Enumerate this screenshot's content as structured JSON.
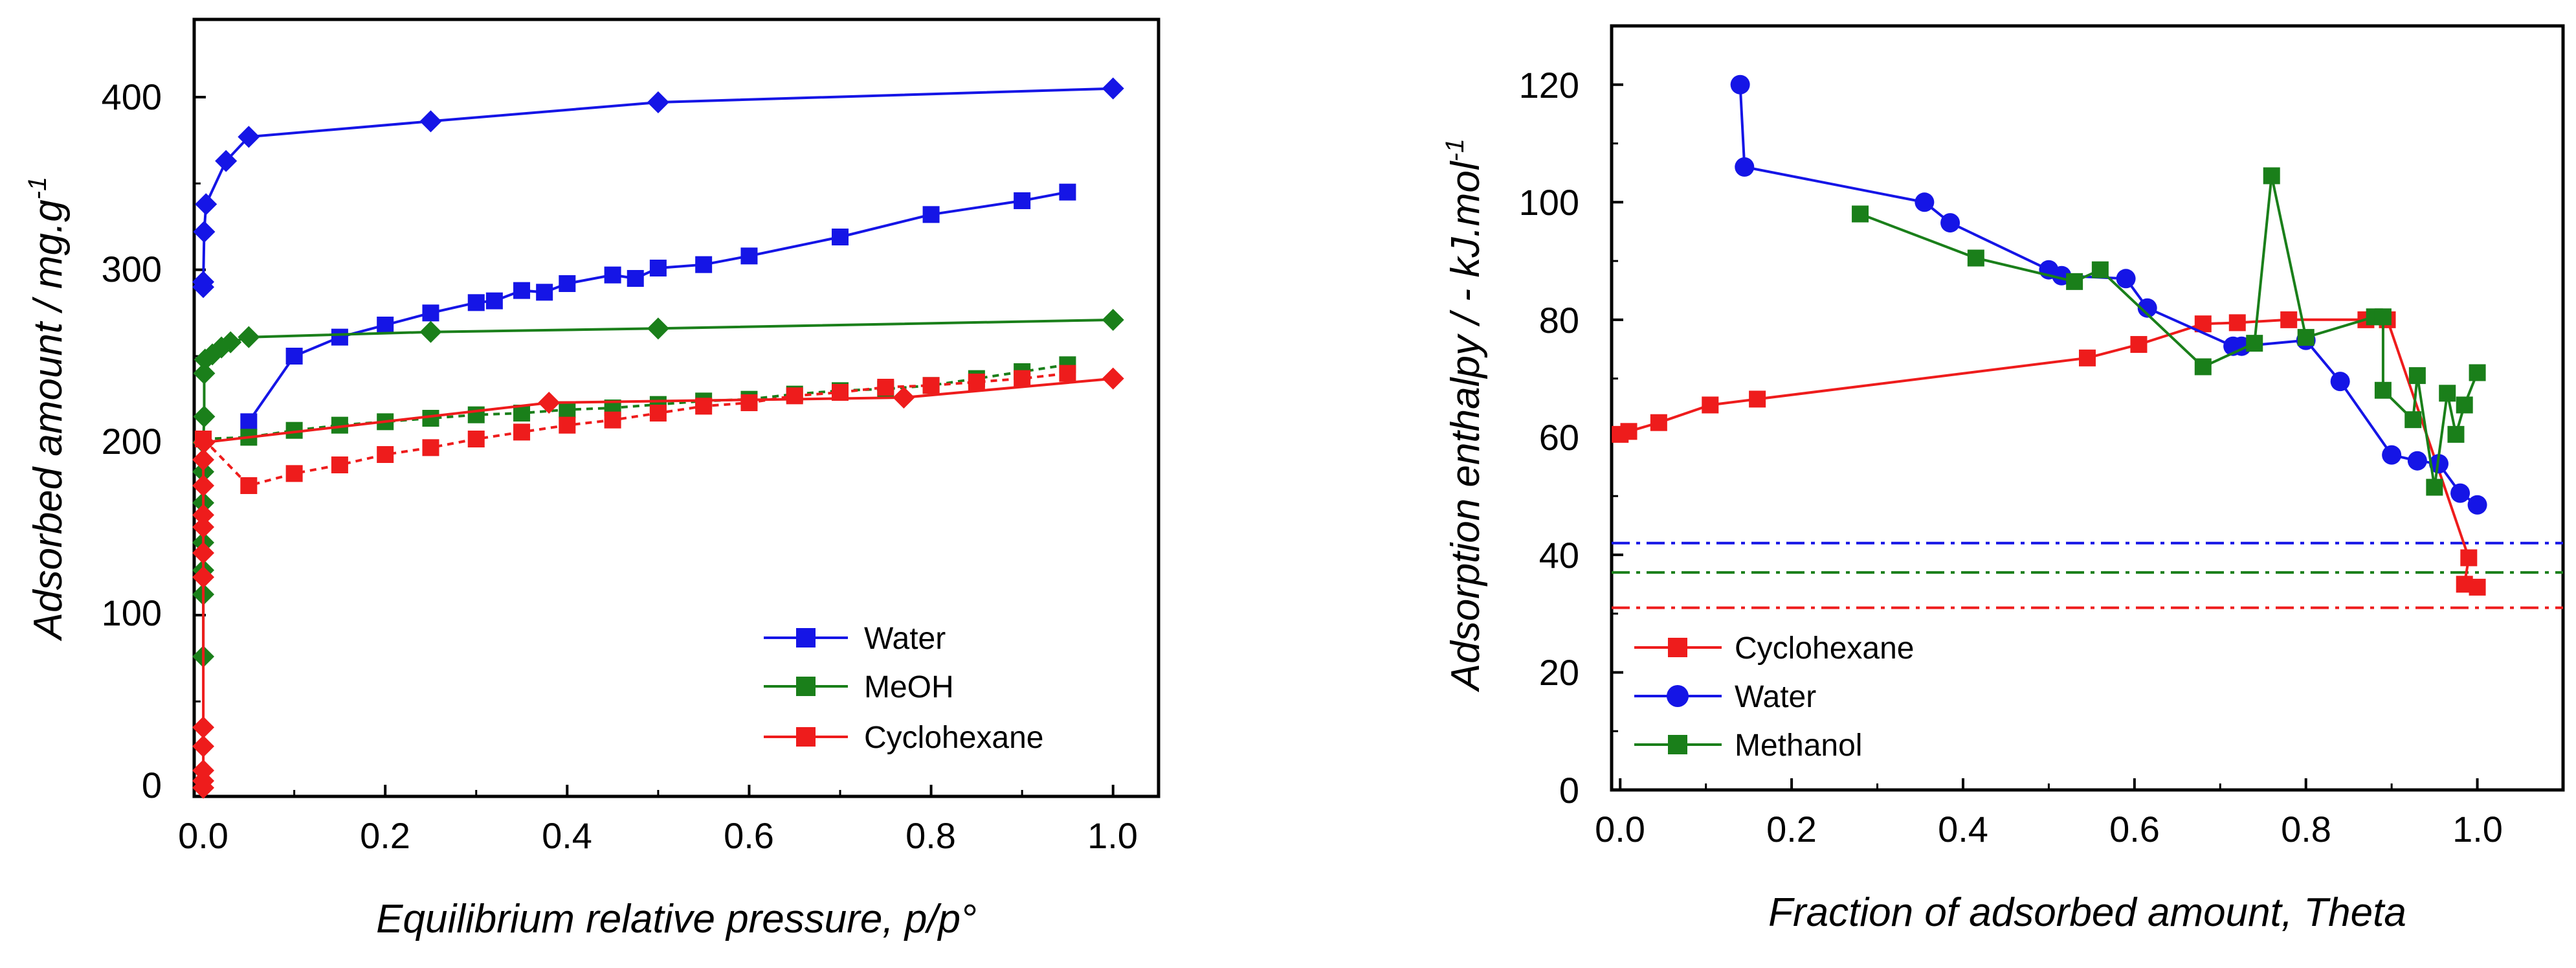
{
  "chart_data": [
    {
      "type": "scatter",
      "xlabel": "Equilibrium relative pressure, p/p°",
      "ylabel": "Adsorbed amount / mg.g",
      "ylabel_sup": "-1",
      "xlim": [
        -0.01,
        1.05
      ],
      "ylim": [
        -5,
        445
      ],
      "xticks": [
        0.0,
        0.2,
        0.4,
        0.6,
        0.8,
        1.0
      ],
      "xtick_labels": [
        "0.0",
        "0.2",
        "0.4",
        "0.6",
        "0.8",
        "1.0"
      ],
      "yticks": [
        0,
        100,
        200,
        300,
        400
      ],
      "ytick_labels": [
        "0",
        "100",
        "200",
        "300",
        "400"
      ],
      "legend_position": "bottom-right",
      "legend": [
        {
          "label": "Water",
          "color": "#1515e6",
          "marker": "square"
        },
        {
          "label": "MeOH",
          "color": "#1a7f1a",
          "marker": "square"
        },
        {
          "label": "Cyclohexane",
          "color": "#ee1c1c",
          "marker": "square"
        }
      ],
      "series": [
        {
          "name": "Water adsorption",
          "color": "#1515e6",
          "marker": "diamond",
          "dash": "",
          "points": [
            [
              0.0,
              290
            ],
            [
              0.0,
              293
            ],
            [
              0.001,
              322
            ],
            [
              0.003,
              338
            ],
            [
              0.025,
              363
            ],
            [
              0.05,
              377
            ],
            [
              0.25,
              386
            ],
            [
              0.5,
              397
            ],
            [
              1.0,
              405
            ]
          ]
        },
        {
          "name": "Water desorption",
          "color": "#1515e6",
          "marker": "square",
          "dash": "",
          "points": [
            [
              0.05,
              212
            ],
            [
              0.1,
              250
            ],
            [
              0.15,
              261
            ],
            [
              0.2,
              268
            ],
            [
              0.25,
              275
            ],
            [
              0.3,
              281
            ],
            [
              0.32,
              282
            ],
            [
              0.35,
              288
            ],
            [
              0.375,
              287
            ],
            [
              0.4,
              292
            ],
            [
              0.45,
              297
            ],
            [
              0.475,
              295
            ],
            [
              0.5,
              301
            ],
            [
              0.55,
              303
            ],
            [
              0.6,
              308
            ],
            [
              0.7,
              319
            ],
            [
              0.8,
              332
            ],
            [
              0.9,
              340
            ],
            [
              0.95,
              345
            ]
          ]
        },
        {
          "name": "MeOH adsorption",
          "color": "#1a7f1a",
          "marker": "diamond",
          "dash": "",
          "points": [
            [
              0.0,
              76
            ],
            [
              0.0,
              112
            ],
            [
              0.0,
              126
            ],
            [
              0.0,
              142
            ],
            [
              0.0,
              165
            ],
            [
              0.0,
              183
            ],
            [
              0.0,
              200
            ],
            [
              0.001,
              215
            ],
            [
              0.001,
              240
            ],
            [
              0.002,
              248
            ],
            [
              0.01,
              251
            ],
            [
              0.02,
              255
            ],
            [
              0.03,
              258
            ],
            [
              0.05,
              261
            ],
            [
              0.25,
              264
            ],
            [
              0.5,
              266
            ],
            [
              1.0,
              271
            ]
          ]
        },
        {
          "name": "MeOH desorption",
          "color": "#1a7f1a",
          "marker": "square",
          "dash": "10,8",
          "points": [
            [
              0.0,
              202
            ],
            [
              0.05,
              203
            ],
            [
              0.1,
              207
            ],
            [
              0.15,
              210
            ],
            [
              0.2,
              212
            ],
            [
              0.25,
              214
            ],
            [
              0.3,
              216
            ],
            [
              0.35,
              217
            ],
            [
              0.4,
              219
            ],
            [
              0.45,
              220
            ],
            [
              0.5,
              222
            ],
            [
              0.55,
              224
            ],
            [
              0.6,
              225
            ],
            [
              0.65,
              228
            ],
            [
              0.7,
              230
            ],
            [
              0.75,
              231
            ],
            [
              0.8,
              233
            ],
            [
              0.85,
              237
            ],
            [
              0.9,
              241
            ],
            [
              0.95,
              245
            ]
          ]
        },
        {
          "name": "Cyclohexane adsorption",
          "color": "#ee1c1c",
          "marker": "diamond",
          "dash": "",
          "points": [
            [
              0.0,
              0
            ],
            [
              0.0,
              4
            ],
            [
              0.0,
              10
            ],
            [
              0.0,
              24
            ],
            [
              0.0,
              35
            ],
            [
              0.0,
              122
            ],
            [
              0.0,
              136
            ],
            [
              0.0,
              151
            ],
            [
              0.0,
              158
            ],
            [
              0.0,
              175
            ],
            [
              0.0,
              190
            ],
            [
              0.001,
              200
            ],
            [
              0.38,
              223
            ],
            [
              0.77,
              226
            ],
            [
              1.0,
              237
            ]
          ]
        },
        {
          "name": "Cyclohexane desorption",
          "color": "#ee1c1c",
          "marker": "square",
          "dash": "10,8",
          "points": [
            [
              0.0,
              202
            ],
            [
              0.05,
              175
            ],
            [
              0.1,
              182
            ],
            [
              0.15,
              187
            ],
            [
              0.2,
              193
            ],
            [
              0.25,
              197
            ],
            [
              0.3,
              202
            ],
            [
              0.35,
              206
            ],
            [
              0.4,
              210
            ],
            [
              0.45,
              213
            ],
            [
              0.5,
              217
            ],
            [
              0.55,
              221
            ],
            [
              0.6,
              223
            ],
            [
              0.65,
              227
            ],
            [
              0.7,
              229
            ],
            [
              0.75,
              232
            ],
            [
              0.8,
              233
            ],
            [
              0.85,
              235
            ],
            [
              0.9,
              237
            ],
            [
              0.95,
              240
            ]
          ]
        }
      ]
    },
    {
      "type": "line",
      "xlabel": "Fraction of adsorbed amount, Theta",
      "ylabel": "Adsorption enthalpy / - kJ.mol",
      "ylabel_sup": "-1",
      "xlim": [
        -0.01,
        1.1
      ],
      "ylim": [
        0,
        130
      ],
      "xticks": [
        0.0,
        0.2,
        0.4,
        0.6,
        0.8,
        1.0
      ],
      "xtick_labels": [
        "0.0",
        "0.2",
        "0.4",
        "0.6",
        "0.8",
        "1.0"
      ],
      "yticks": [
        0,
        20,
        40,
        60,
        80,
        100,
        120
      ],
      "ytick_labels": [
        "0",
        "20",
        "40",
        "60",
        "80",
        "100",
        "120"
      ],
      "legend_position": "bottom-left",
      "legend": [
        {
          "label": "Cyclohexane",
          "color": "#ee1c1c",
          "marker": "square"
        },
        {
          "label": "Water",
          "color": "#1515e6",
          "marker": "circle"
        },
        {
          "label": "Methanol",
          "color": "#1a7f1a",
          "marker": "square"
        }
      ],
      "reference_lines": [
        {
          "name": "Water reference",
          "y": 42,
          "color": "#1515e6"
        },
        {
          "name": "Methanol reference",
          "y": 37,
          "color": "#1a7f1a"
        },
        {
          "name": "Cyclohexane reference",
          "y": 31,
          "color": "#ee1c1c"
        }
      ],
      "series": [
        {
          "name": "Cyclohexane",
          "color": "#ee1c1c",
          "marker": "square",
          "points": [
            [
              0.0,
              60.5
            ],
            [
              0.01,
              61
            ],
            [
              0.045,
              62.5
            ],
            [
              0.105,
              65.5
            ],
            [
              0.16,
              66.5
            ],
            [
              0.545,
              73.5
            ],
            [
              0.605,
              75.8
            ],
            [
              0.68,
              79.3
            ],
            [
              0.72,
              79.5
            ],
            [
              0.78,
              80
            ],
            [
              0.87,
              80
            ],
            [
              0.895,
              80
            ],
            [
              0.99,
              39.5
            ],
            [
              0.985,
              35
            ],
            [
              1.0,
              34.5
            ]
          ]
        },
        {
          "name": "Water",
          "color": "#1515e6",
          "marker": "circle",
          "points": [
            [
              0.14,
              120
            ],
            [
              0.145,
              106
            ],
            [
              0.355,
              100
            ],
            [
              0.385,
              96.5
            ],
            [
              0.5,
              88.5
            ],
            [
              0.515,
              87.5
            ],
            [
              0.59,
              87
            ],
            [
              0.615,
              82
            ],
            [
              0.715,
              75.5
            ],
            [
              0.725,
              75.5
            ],
            [
              0.8,
              76.5
            ],
            [
              0.84,
              69.5
            ],
            [
              0.9,
              57
            ],
            [
              0.93,
              56
            ],
            [
              0.955,
              55.5
            ],
            [
              0.98,
              50.5
            ],
            [
              1.0,
              48.5
            ]
          ]
        },
        {
          "name": "Methanol",
          "color": "#1a7f1a",
          "marker": "square",
          "points": [
            [
              0.28,
              98
            ],
            [
              0.415,
              90.5
            ],
            [
              0.53,
              86.5
            ],
            [
              0.56,
              88.5
            ],
            [
              0.68,
              72
            ],
            [
              0.74,
              76
            ],
            [
              0.76,
              104.5
            ],
            [
              0.8,
              77
            ],
            [
              0.88,
              80.5
            ],
            [
              0.89,
              80.5
            ],
            [
              0.89,
              68
            ],
            [
              0.925,
              63
            ],
            [
              0.93,
              70.5
            ],
            [
              0.95,
              51.5
            ],
            [
              0.965,
              67.5
            ],
            [
              0.975,
              60.5
            ],
            [
              0.985,
              65.5
            ],
            [
              1.0,
              71
            ]
          ]
        }
      ]
    }
  ]
}
